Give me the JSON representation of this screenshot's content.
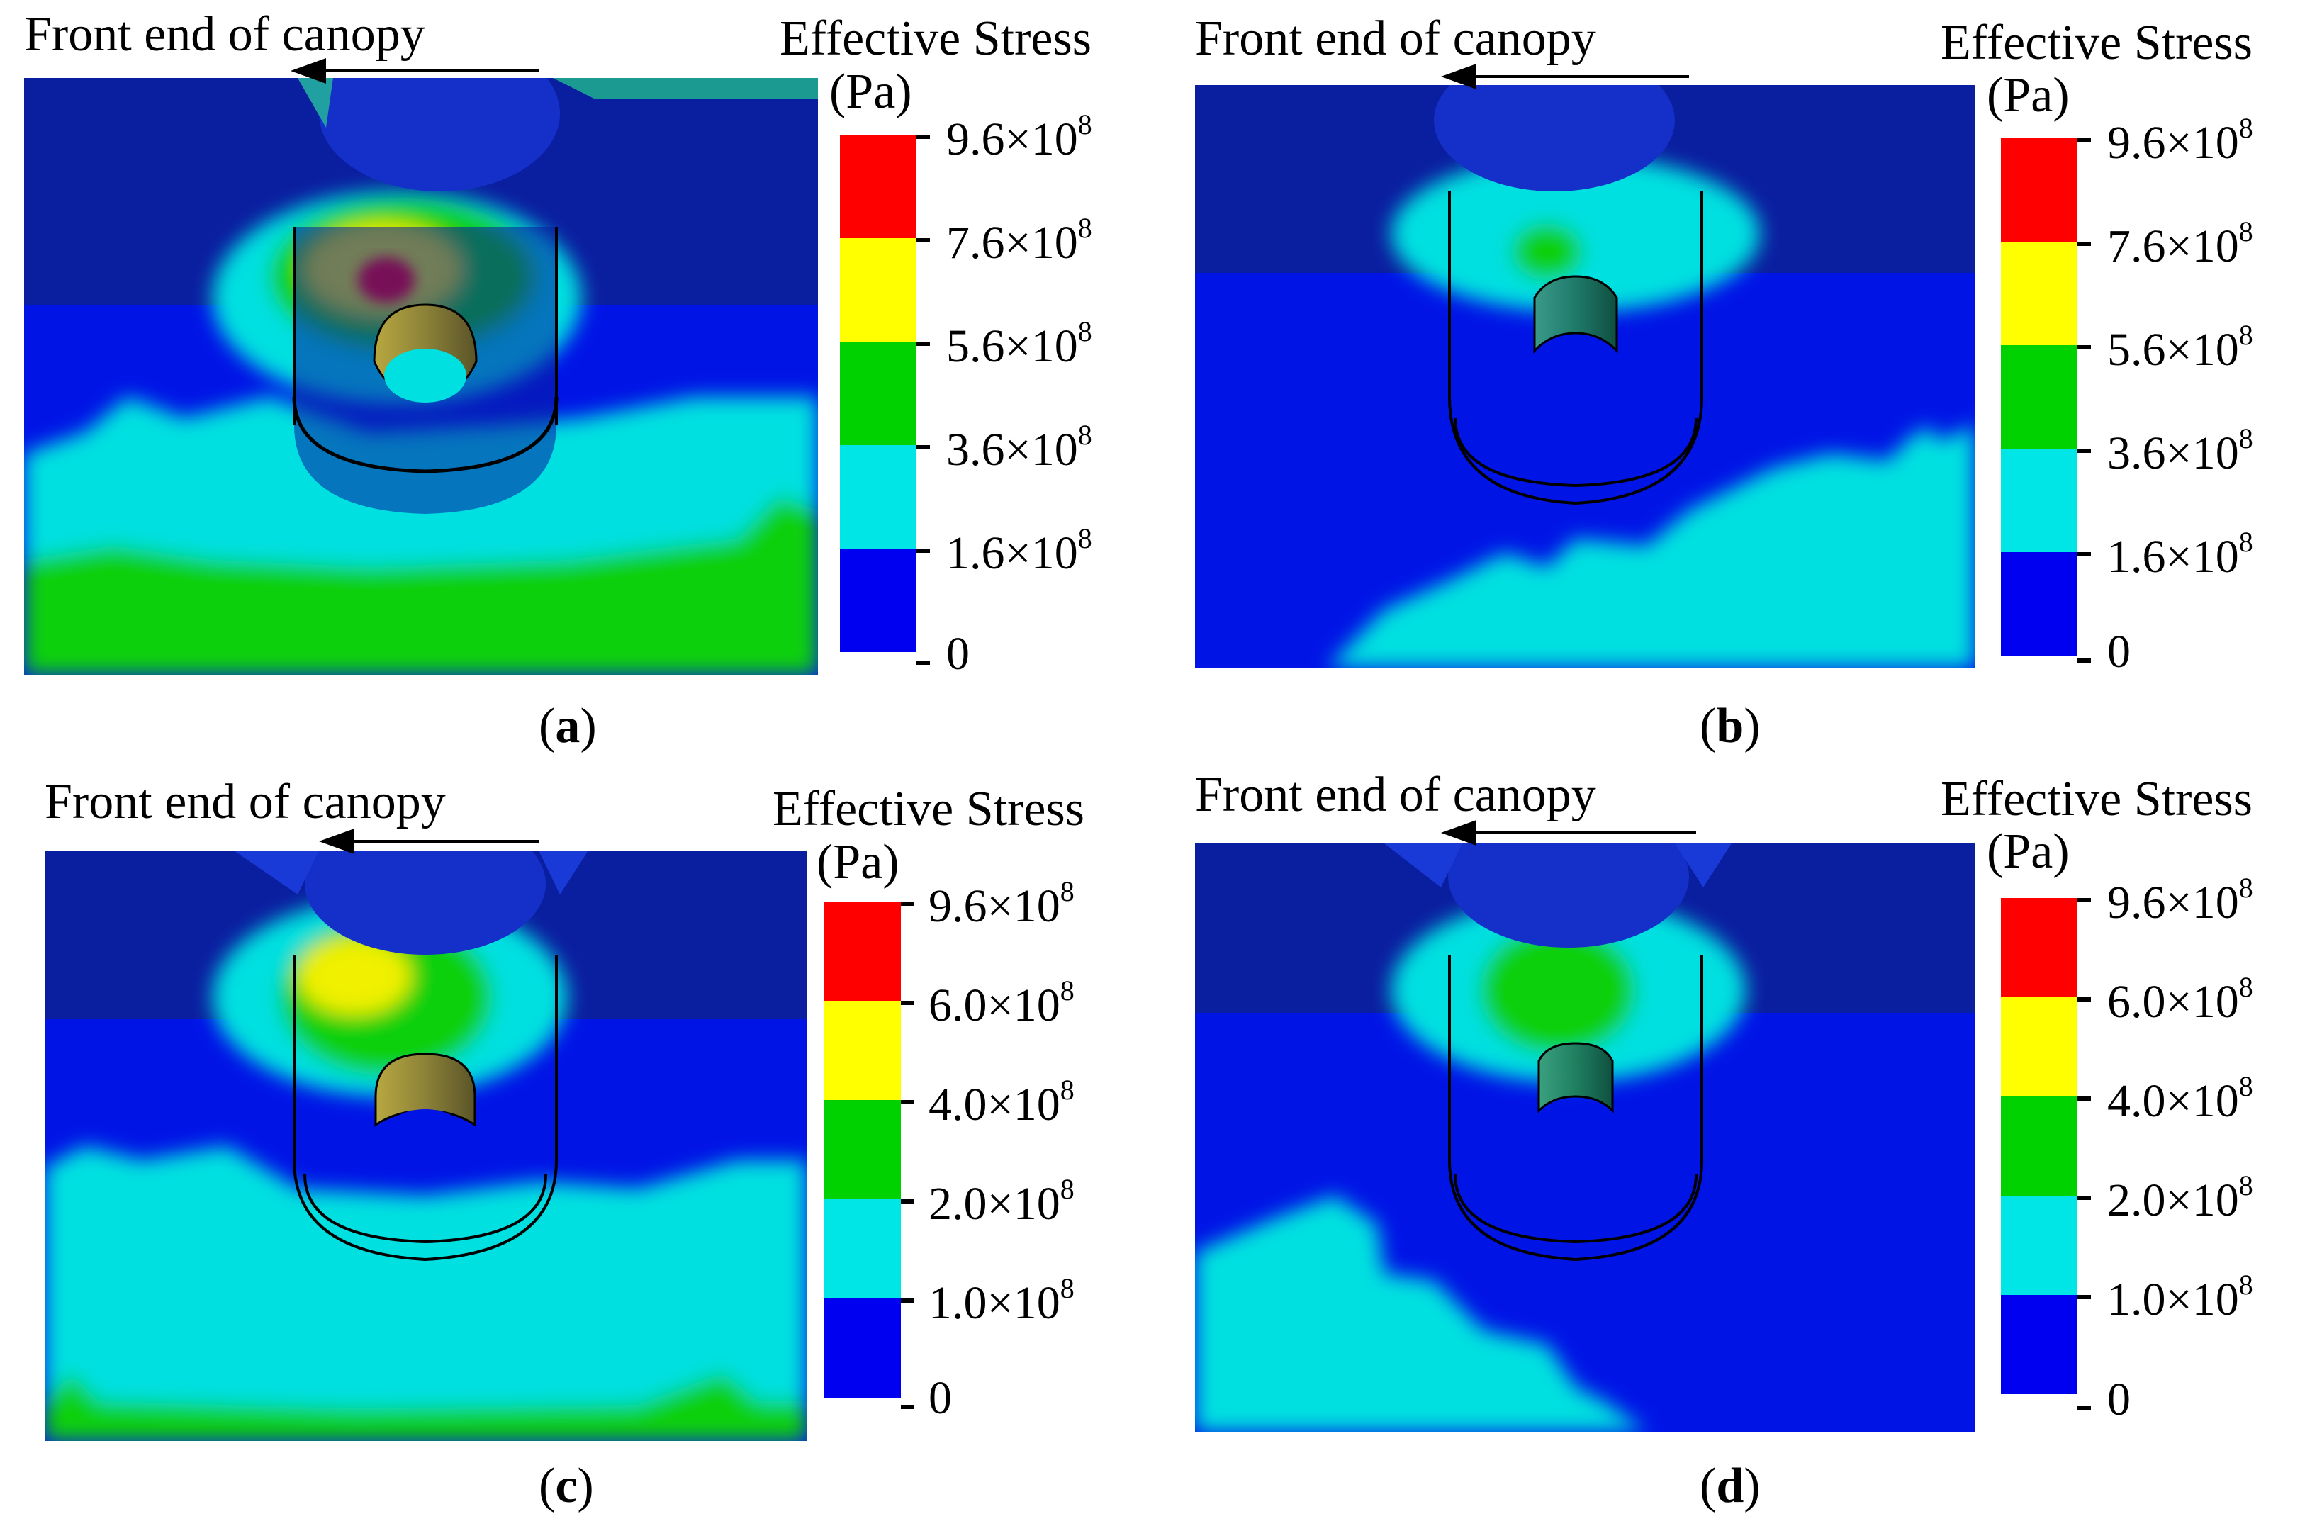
{
  "panels": [
    {
      "id": "a",
      "caption_letter": "a",
      "arrow_label": "Front end of canopy",
      "legend_title": "Effective Stress",
      "legend_unit": "(Pa)",
      "legend_ticks": [
        "9.6×10",
        "7.6×10",
        "5.6×10",
        "3.6×10",
        "1.6×10",
        "0"
      ],
      "legend_exponent": "8",
      "bands_top_to_bottom": [
        "#ff0000",
        "#ffff00",
        "#00d200",
        "#00e6e6",
        "#0000f0"
      ]
    },
    {
      "id": "b",
      "caption_letter": "b",
      "arrow_label": "Front end of canopy",
      "legend_title": "Effective Stress",
      "legend_unit": "(Pa)",
      "legend_ticks": [
        "9.6×10",
        "7.6×10",
        "5.6×10",
        "3.6×10",
        "1.6×10",
        "0"
      ],
      "legend_exponent": "8",
      "bands_top_to_bottom": [
        "#ff0000",
        "#ffff00",
        "#00d200",
        "#00e6e6",
        "#0000f0"
      ]
    },
    {
      "id": "c",
      "caption_letter": "c",
      "arrow_label": "Front end of canopy",
      "legend_title": "Effective Stress",
      "legend_unit": "(Pa)",
      "legend_ticks": [
        "9.6×10",
        "6.0×10",
        "4.0×10",
        "2.0×10",
        "1.0×10",
        "0"
      ],
      "legend_exponent": "8",
      "bands_top_to_bottom": [
        "#ff0000",
        "#ffff00",
        "#00d200",
        "#00e6e6",
        "#0000f0"
      ]
    },
    {
      "id": "d",
      "caption_letter": "d",
      "arrow_label": "Front end of canopy",
      "legend_title": "Effective Stress",
      "legend_unit": "(Pa)",
      "legend_ticks": [
        "9.6×10",
        "6.0×10",
        "4.0×10",
        "2.0×10",
        "1.0×10",
        "0"
      ],
      "legend_exponent": "8",
      "bands_top_to_bottom": [
        "#ff0000",
        "#ffff00",
        "#00d200",
        "#00e6e6",
        "#0000f0"
      ]
    }
  ],
  "colors": {
    "dark_blue": "#0a1ea0",
    "blue": "#0014e6",
    "cyan": "#00e0e0",
    "green": "#10d010",
    "yellow": "#f0f000",
    "red": "#ff0000",
    "olive": "#a89a30"
  }
}
